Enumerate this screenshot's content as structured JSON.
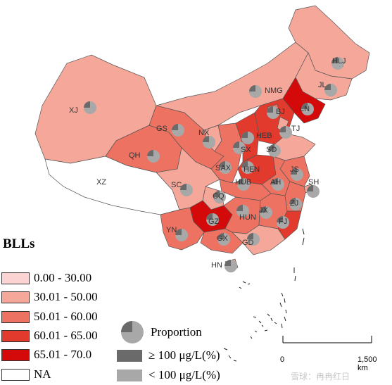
{
  "legend": {
    "title": "BLLs",
    "classes": [
      {
        "label": "0.00 - 30.00",
        "color": "#fbd3d3"
      },
      {
        "label": "30.01 - 50.00",
        "color": "#f5a79a"
      },
      {
        "label": "50.01 - 60.00",
        "color": "#ee7261"
      },
      {
        "label": "60.01 - 65.00",
        "color": "#e23b2e"
      },
      {
        "label": "65.01 - 70.0",
        "color": "#d40a0a"
      },
      {
        "label": "NA",
        "color": "#ffffff"
      }
    ]
  },
  "proportion_legend": {
    "title": "Proportion",
    "items": [
      {
        "label": "≥ 100 μg/L(%)",
        "color": "#6a6a6a"
      },
      {
        "label": "< 100 μg/L(%)",
        "color": "#a8a8a8"
      }
    ]
  },
  "scale_bar": {
    "start": "0",
    "end": "1,500 km"
  },
  "watermark": "雪球：冉冉红日",
  "provinces": [
    "XJ",
    "XZ",
    "QH",
    "GS",
    "NX",
    "NMG",
    "HLJ",
    "JL",
    "LN",
    "HEB",
    "BJ",
    "TJ",
    "SX",
    "SD",
    "SAX",
    "HEN",
    "JS",
    "SH",
    "AH",
    "HUB",
    "CQ",
    "SC",
    "ZJ",
    "JX",
    "HUN",
    "FJ",
    "GZ",
    "YN",
    "GX",
    "GD",
    "HN"
  ]
}
